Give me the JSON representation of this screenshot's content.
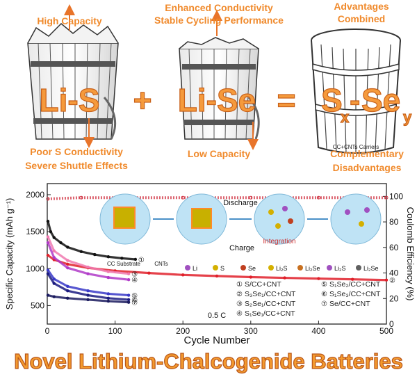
{
  "top": {
    "li_s": {
      "title": "Li-S",
      "pro": "High Capacity",
      "con_lines": [
        "Poor S Conductivity",
        "Severe Shuttle Effects"
      ]
    },
    "plus": "+",
    "li_se": {
      "title": "Li-Se",
      "pro_lines": [
        "Enhanced Conductivity",
        "Stable Cycling Performance"
      ],
      "con": "Low Capacity"
    },
    "equals": "=",
    "sxsey": {
      "s": "S",
      "x": "x",
      "dash": "-",
      "se": "Se",
      "y": "y",
      "pro_lines": [
        "Advantages",
        "Combined"
      ],
      "con_lines": [
        "Complementary",
        "Disadvantages"
      ],
      "carrier_label": "CC+CNTs Carriers"
    }
  },
  "chart_data": {
    "type": "scatter",
    "xlabel": "Cycle Number",
    "ylabel": "Specific Capacity (mAh g⁻¹)",
    "y2label": "Coulomb Efficiency (%)",
    "xlim": [
      0,
      500
    ],
    "ylim": [
      250,
      2150
    ],
    "y2lim": [
      0,
      110
    ],
    "xticks": [
      "0",
      "100",
      "200",
      "300",
      "400",
      "500"
    ],
    "yticks": [
      "500",
      "1000",
      "1500",
      "2000"
    ],
    "y2ticks": [
      "0",
      "20",
      "40",
      "60",
      "80",
      "100"
    ],
    "rate_label": "0.5 C",
    "series": [
      {
        "name": "S/CC+CNT",
        "marker": "①",
        "color": "#111111",
        "x": [
          1,
          5,
          10,
          20,
          30,
          50,
          70,
          90,
          110,
          130
        ],
        "y": [
          1640,
          1500,
          1420,
          1350,
          1290,
          1230,
          1190,
          1160,
          1140,
          1125
        ]
      },
      {
        "name": "S₃Se₁/CC+CNT",
        "marker": "②",
        "color": "#e0202a",
        "x": [
          1,
          10,
          30,
          60,
          100,
          150,
          200,
          250,
          300,
          350,
          400,
          450,
          500
        ],
        "y": [
          1180,
          1120,
          1060,
          1010,
          970,
          940,
          915,
          900,
          885,
          875,
          865,
          855,
          845
        ]
      },
      {
        "name": "S₂Se₁/CC+CNT",
        "marker": "③",
        "color": "#f07ab0",
        "x": [
          1,
          10,
          30,
          60,
          90,
          120
        ],
        "y": [
          1430,
          1240,
          1110,
          1020,
          960,
          930
        ]
      },
      {
        "name": "S₁Se₁/CC+CNT",
        "marker": "④",
        "color": "#b03bc8",
        "x": [
          1,
          10,
          30,
          60,
          90,
          120
        ],
        "y": [
          1350,
          1150,
          1010,
          930,
          880,
          850
        ]
      },
      {
        "name": "S₁Se₂/CC+CNT",
        "marker": "⑤",
        "color": "#3a3ac8",
        "x": [
          1,
          10,
          30,
          60,
          90,
          120
        ],
        "y": [
          980,
          860,
          760,
          700,
          660,
          640
        ]
      },
      {
        "name": "S₁Se₃/CC+CNT",
        "marker": "⑥",
        "color": "#1a1a80",
        "x": [
          1,
          10,
          30,
          60,
          90,
          120
        ],
        "y": [
          930,
          800,
          700,
          640,
          600,
          580
        ]
      },
      {
        "name": "Se/CC+CNT",
        "marker": "⑦",
        "color": "#1a1a5e",
        "x": [
          1,
          10,
          30,
          60,
          90,
          120
        ],
        "y": [
          640,
          620,
          600,
          580,
          560,
          545
        ]
      }
    ],
    "coulomb_efficiency": {
      "x": [
        1,
        50,
        100,
        200,
        300,
        400,
        500
      ],
      "y": [
        98,
        99,
        99,
        99,
        99,
        99,
        99
      ]
    }
  },
  "inset": {
    "phases": [
      "Li",
      "S",
      "Se",
      "Li₂S",
      "Li₂Se",
      "Li₂S",
      "Li₂Se"
    ],
    "discharge": "Discharge",
    "charge": "Charge",
    "integration": "Integration",
    "substrate": "CC Substrate",
    "cnts": "CNTs"
  },
  "banner": "Novel Lithium-Chalcogenide Batteries",
  "colors": {
    "accent_orange": "#f08a2c",
    "ce_red": "#d03040",
    "legend_purple": "#8e44ad"
  }
}
